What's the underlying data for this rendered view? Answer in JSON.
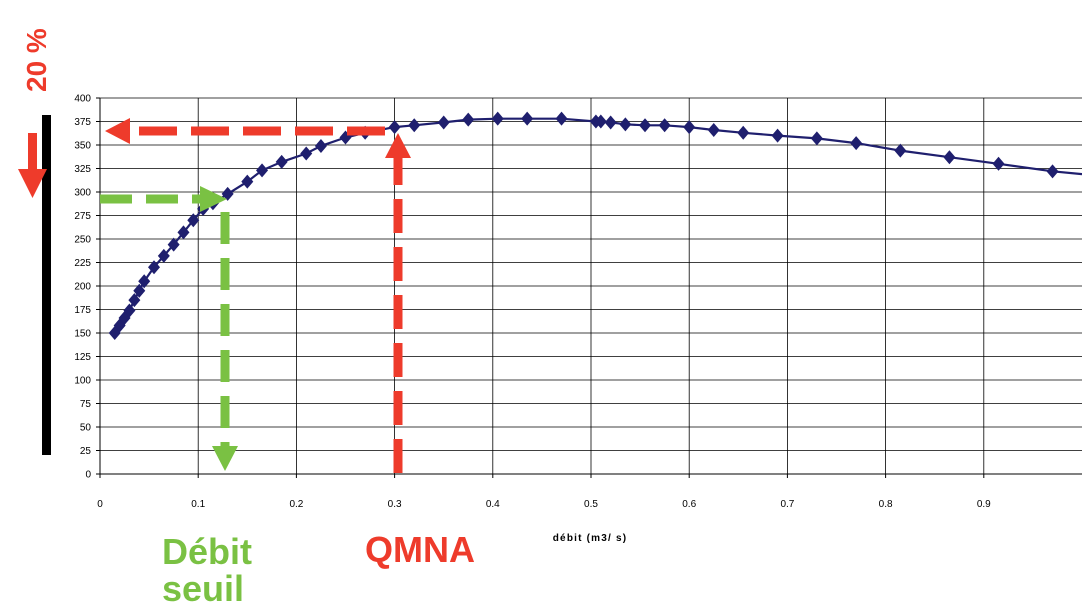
{
  "chart_data": {
    "type": "line",
    "title": "",
    "xlabel": "débit (m3/ s)",
    "ylabel": "",
    "xlim": [
      0,
      1.0
    ],
    "ylim": [
      0,
      400
    ],
    "x_ticks": [
      "0",
      "0.1",
      "0.2",
      "0.3",
      "0.4",
      "0.5",
      "0.6",
      "0.7",
      "0.8",
      "0.9"
    ],
    "y_ticks": [
      "0",
      "25",
      "50",
      "75",
      "100",
      "125",
      "150",
      "175",
      "200",
      "225",
      "250",
      "275",
      "300",
      "325",
      "350",
      "375",
      "400"
    ],
    "grid": true,
    "series": [
      {
        "color": "#1f1f6e",
        "marker": "diamond",
        "x": [
          0.015,
          0.02,
          0.025,
          0.03,
          0.035,
          0.04,
          0.045,
          0.055,
          0.065,
          0.075,
          0.085,
          0.095,
          0.105,
          0.115,
          0.13,
          0.15,
          0.165,
          0.185,
          0.21,
          0.225,
          0.25,
          0.27,
          0.3,
          0.32,
          0.35,
          0.375,
          0.405,
          0.435,
          0.47,
          0.505,
          0.51,
          0.52,
          0.535,
          0.555,
          0.575,
          0.6,
          0.625,
          0.655,
          0.69,
          0.73,
          0.77,
          0.815,
          0.865,
          0.915,
          0.97
        ],
        "values": [
          150,
          158,
          166,
          174,
          185,
          195,
          205,
          220,
          232,
          244,
          257,
          270,
          282,
          288,
          298,
          311,
          323,
          332,
          341,
          349,
          358,
          363,
          369,
          371,
          374,
          377,
          378,
          378,
          378,
          375,
          375,
          374,
          372,
          371,
          371,
          369,
          366,
          363,
          360,
          357,
          352,
          344,
          337,
          330,
          322
        ]
      }
    ],
    "end_value": 319
  },
  "annotations": {
    "percent_label": "20 %",
    "debit_seuil_line1": "Débit",
    "debit_seuil_line2": "seuil",
    "qmna_label": "QMNA"
  },
  "colors": {
    "green": "#7ac143",
    "red": "#ee3b2b",
    "series": "#1f1f6e"
  }
}
